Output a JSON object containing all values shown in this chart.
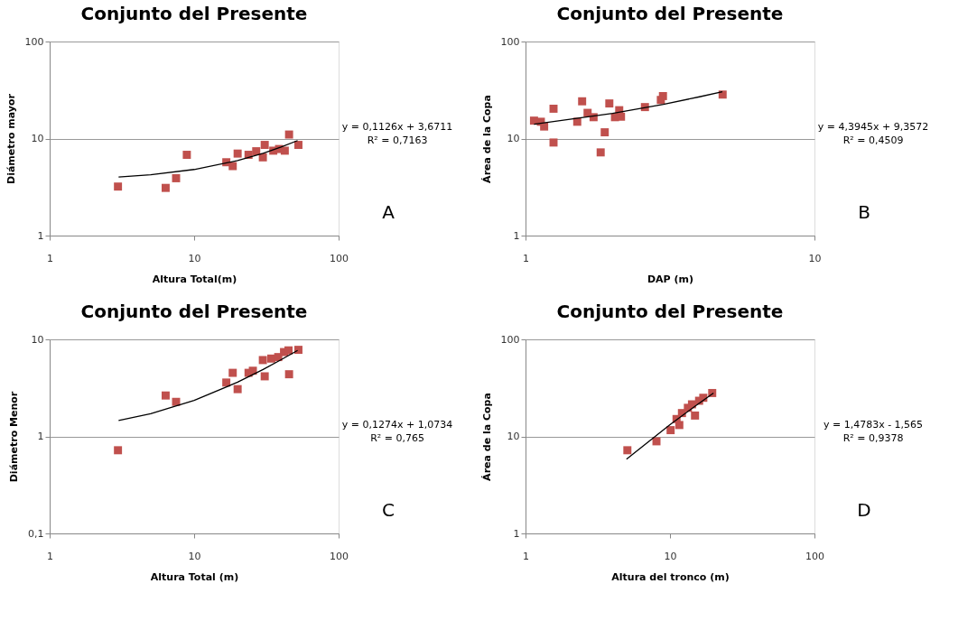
{
  "chart_data": [
    {
      "type": "scatter",
      "title": "Conjunto del Presente",
      "xlabel": "Altura Total(m)",
      "ylabel": "Diámetro mayor",
      "log": "xy",
      "grid": "y",
      "marker": "square",
      "xlim": [
        1,
        100
      ],
      "ylim": [
        1,
        100
      ],
      "xticks": [
        1,
        10,
        100
      ],
      "yticks": [
        1,
        10,
        100
      ],
      "series": [
        {
          "color": "#c0504d",
          "x": [
            2.97,
            6.35,
            7.5,
            8.9,
            16.7,
            18.5,
            20,
            23.8,
            26.9,
            29.9,
            30.8,
            35.3,
            38.7,
            42.4,
            45.4,
            52.7
          ],
          "values": [
            3.2,
            3.1,
            3.9,
            6.8,
            5.7,
            5.2,
            7.0,
            6.8,
            7.4,
            6.4,
            8.6,
            7.5,
            7.8,
            7.5,
            11.0,
            8.6
          ]
        },
        {
          "type": "line",
          "marker": "none",
          "color": "#000000",
          "x": [
            3,
            5,
            10,
            20,
            30,
            40,
            52
          ],
          "values": [
            4.01,
            4.23,
            4.8,
            5.92,
            7.05,
            8.17,
            9.53
          ]
        }
      ],
      "annotations": [
        "y = 0,1126x + 3,6711",
        "R² = 0,7163",
        "A"
      ]
    },
    {
      "type": "scatter",
      "title": "Conjunto del Presente",
      "xlabel": "DAP (m)",
      "ylabel": "Área de la Copa",
      "log": "xy",
      "grid": "y",
      "marker": "square",
      "xlim": [
        1,
        10
      ],
      "ylim": [
        1,
        100
      ],
      "xticks": [
        1,
        10
      ],
      "yticks": [
        1,
        10,
        100
      ],
      "series": [
        {
          "color": "#c0504d",
          "x": [
            1.07,
            1.13,
            1.16,
            1.25,
            1.25,
            1.51,
            1.57,
            1.64,
            1.72,
            1.82,
            1.88,
            1.95,
            2.04,
            2.11,
            2.14,
            2.59,
            2.94,
            2.99,
            4.81
          ],
          "values": [
            15.3,
            14.9,
            13.3,
            20.3,
            9.1,
            14.9,
            24.2,
            18.4,
            16.6,
            7.2,
            11.6,
            23.0,
            16.6,
            19.6,
            16.8,
            21.1,
            25.0,
            27.4,
            28.4
          ]
        },
        {
          "type": "line",
          "marker": "none",
          "color": "#000000",
          "x": [
            1.07,
            2,
            3,
            4,
            4.8
          ],
          "values": [
            14.06,
            18.15,
            22.54,
            26.93,
            30.45
          ]
        }
      ],
      "annotations": [
        "y = 4,3945x + 9,3572",
        "R² = 0,4509",
        "B"
      ]
    },
    {
      "type": "scatter",
      "title": "Conjunto del Presente",
      "xlabel": "Altura Total  (m)",
      "ylabel": "Diámetro Menor",
      "log": "xy",
      "grid": "y",
      "marker": "square",
      "xlim": [
        1,
        100
      ],
      "ylim": [
        0.1,
        10
      ],
      "xticks": [
        1,
        10,
        100
      ],
      "yticks": [
        {
          "value": 0.1,
          "label": "0,1"
        },
        1,
        10
      ],
      "series": [
        {
          "color": "#c0504d",
          "x": [
            2.97,
            6.35,
            7.5,
            16.7,
            18.5,
            20,
            23.8,
            25.5,
            30.8,
            29.9,
            34.2,
            38.2,
            41.9,
            45.4,
            45,
            52.7
          ],
          "values": [
            0.72,
            2.64,
            2.27,
            3.59,
            4.52,
            3.07,
            4.52,
            4.75,
            4.16,
            6.12,
            6.34,
            6.57,
            7.4,
            4.37,
            7.7,
            7.8
          ]
        },
        {
          "type": "line",
          "marker": "none",
          "color": "#000000",
          "x": [
            3,
            5,
            10,
            20,
            30,
            40,
            52
          ],
          "values": [
            1.46,
            1.71,
            2.35,
            3.62,
            4.9,
            6.17,
            7.7
          ]
        }
      ],
      "annotations": [
        "y = 0,1274x + 1,0734",
        "R² = 0,765",
        "C"
      ]
    },
    {
      "type": "scatter",
      "title": "Conjunto del Presente",
      "xlabel": "Altura del tronco (m)",
      "ylabel": "Área de la Copa",
      "log": "xy",
      "grid": "y",
      "marker": "square",
      "xlim": [
        1,
        100
      ],
      "ylim": [
        1,
        100
      ],
      "xticks": [
        1,
        10,
        100
      ],
      "yticks": [
        1,
        10,
        100
      ],
      "series": [
        {
          "color": "#c0504d",
          "x": [
            5.07,
            8.06,
            10.1,
            11.1,
            11.6,
            12.1,
            13.3,
            14.2,
            14.9,
            15.9,
            17.0,
            18.6,
            19.6
          ],
          "values": [
            7.2,
            8.9,
            11.6,
            15.1,
            13.1,
            17.4,
            19.7,
            21.4,
            16.4,
            23.3,
            25.0,
            null,
            28.0
          ]
        },
        {
          "type": "line",
          "marker": "none",
          "color": "#000000",
          "x": [
            5,
            10,
            15,
            20
          ],
          "values": [
            5.83,
            13.22,
            20.61,
            28.0
          ]
        }
      ],
      "annotations": [
        "y = 1,4783x - 1,565",
        "R² = 0,9378",
        "D"
      ]
    }
  ]
}
